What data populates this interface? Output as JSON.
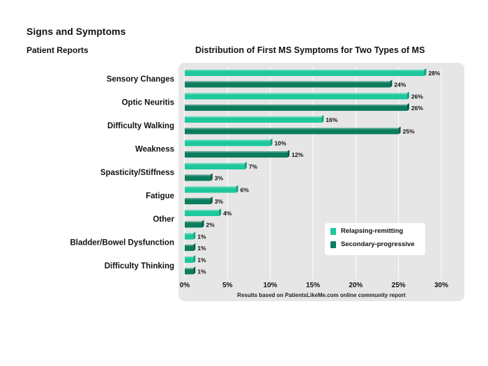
{
  "header": {
    "section_title": "Signs and Symptoms",
    "subtitle": "Patient Reports"
  },
  "chart_data": {
    "type": "bar",
    "orientation": "horizontal",
    "title": "Distribution of First MS Symptoms for Two Types of MS",
    "categories": [
      "Sensory Changes",
      "Optic Neuritis",
      "Difficulty Walking",
      "Weakness",
      "Spasticity/Stiffness",
      "Fatigue",
      "Other",
      "Bladder/Bowel Dysfunction",
      "Difficulty Thinking"
    ],
    "series": [
      {
        "name": "Relapsing-remitting",
        "values": [
          28,
          26,
          16,
          10,
          7,
          6,
          4,
          1,
          1
        ],
        "color": "#1ec89c"
      },
      {
        "name": "Secondary-progressive",
        "values": [
          24,
          26,
          25,
          12,
          3,
          3,
          2,
          1,
          1
        ],
        "color": "#0b7d5e"
      }
    ],
    "data_labels": [
      [
        "28%",
        "26%",
        "16%",
        "10%",
        "7%",
        "6%",
        "4%",
        "1%",
        "1%"
      ],
      [
        "24%",
        "26%",
        "25%",
        "12%",
        "3%",
        "3%",
        "2%",
        "1%",
        "1%"
      ]
    ],
    "xlim": [
      0,
      30
    ],
    "x_ticks": [
      0,
      5,
      10,
      15,
      20,
      25,
      30
    ],
    "x_tick_labels": [
      "0%",
      "5%",
      "10%",
      "15%",
      "20%",
      "25%",
      "30%"
    ],
    "grid": true,
    "legend_position": "bottom-right",
    "note": "Results based on PatientsLikeMe.com online community report"
  },
  "colors": {
    "panel_background": "#e6e6e6",
    "grid_line": "#ffffff"
  }
}
